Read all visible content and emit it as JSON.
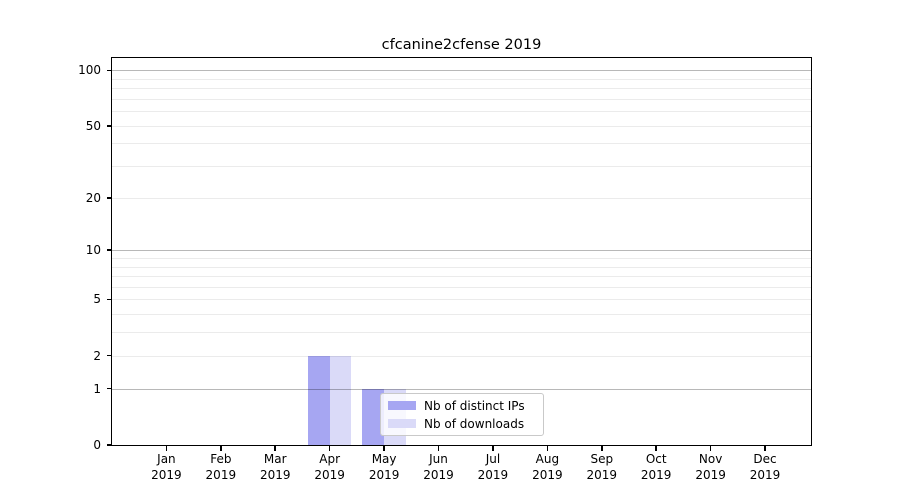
{
  "chart_data": {
    "type": "bar",
    "title": "cfcanine2cfense 2019",
    "categories": [
      {
        "month": "Jan",
        "year": "2019"
      },
      {
        "month": "Feb",
        "year": "2019"
      },
      {
        "month": "Mar",
        "year": "2019"
      },
      {
        "month": "Apr",
        "year": "2019"
      },
      {
        "month": "May",
        "year": "2019"
      },
      {
        "month": "Jun",
        "year": "2019"
      },
      {
        "month": "Jul",
        "year": "2019"
      },
      {
        "month": "Aug",
        "year": "2019"
      },
      {
        "month": "Sep",
        "year": "2019"
      },
      {
        "month": "Oct",
        "year": "2019"
      },
      {
        "month": "Nov",
        "year": "2019"
      },
      {
        "month": "Dec",
        "year": "2019"
      }
    ],
    "series": [
      {
        "name": "Nb of distinct IPs",
        "color": "#a6a6f2",
        "values": [
          0,
          0,
          0,
          2,
          1,
          0,
          0,
          0,
          0,
          0,
          0,
          0
        ]
      },
      {
        "name": "Nb of downloads",
        "color": "#dadaf8",
        "values": [
          0,
          0,
          0,
          2,
          1,
          0,
          0,
          0,
          0,
          0,
          0,
          0
        ]
      }
    ],
    "y_axis": {
      "scale": "log1p",
      "ticks": [
        100,
        50,
        20,
        10,
        5,
        2,
        1,
        0
      ],
      "major_gridlines": [
        100,
        10,
        1
      ],
      "minor_gridlines": [
        2,
        3,
        4,
        5,
        6,
        7,
        8,
        9,
        20,
        30,
        40,
        50,
        60,
        70,
        80,
        90
      ],
      "ylim": [
        0,
        112
      ]
    },
    "legend": {
      "position": "lower center"
    },
    "colors": {
      "spine": "#000000",
      "grid_major": "#b8b8b8",
      "grid_minor": "#ebebeb",
      "legend_border": "#c9c9c9",
      "background": "#ffffff"
    }
  }
}
